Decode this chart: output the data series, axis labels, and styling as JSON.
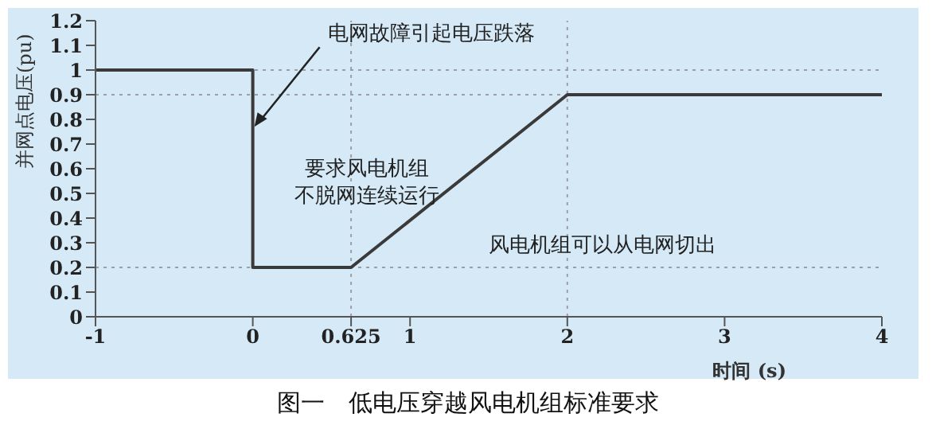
{
  "chart_data": {
    "type": "line",
    "xlabel": "时间 (s)",
    "ylabel": "并网点电压(pu)",
    "x": [
      -1,
      0,
      0,
      0.625,
      2,
      4
    ],
    "series": [
      {
        "color": "#3a3a3a",
        "values": [
          1,
          1,
          0.2,
          0.2,
          0.9,
          0.9
        ]
      }
    ],
    "xlim": [
      -1,
      4
    ],
    "xticks": [
      -1,
      0,
      0.625,
      1,
      2,
      3,
      4
    ],
    "ylim": [
      0,
      1.2
    ],
    "yticks": [
      0,
      0.1,
      0.2,
      0.3,
      0.4,
      0.5,
      0.6,
      0.7,
      0.8,
      0.9,
      1,
      1.1,
      1.2
    ],
    "ref_lines": [
      {
        "axis": "y",
        "value": 1,
        "color": "#9aa0a6",
        "line_style": "dotted"
      },
      {
        "axis": "y",
        "value": 0.9,
        "color": "#9aa0a6",
        "line_style": "dotted"
      },
      {
        "axis": "y",
        "value": 0.2,
        "color": "#9aa0a6",
        "line_style": "dotted"
      },
      {
        "axis": "x",
        "value": 0.625,
        "color": "#9aa0a6",
        "line_style": "dotted"
      },
      {
        "axis": "x",
        "value": 2,
        "color": "#9aa0a6",
        "line_style": "dotted"
      }
    ],
    "grid": false,
    "legend": false,
    "marker": "none",
    "line_style": "solid",
    "annotations": [
      {
        "text": "电网故障引起电压跌落",
        "x": 0,
        "y": 0.77
      },
      "要求风电机组",
      "不脱网连续运行",
      "风电机组可以从电网切出",
      "图一　低电压穿越风电机组标准要求"
    ]
  }
}
